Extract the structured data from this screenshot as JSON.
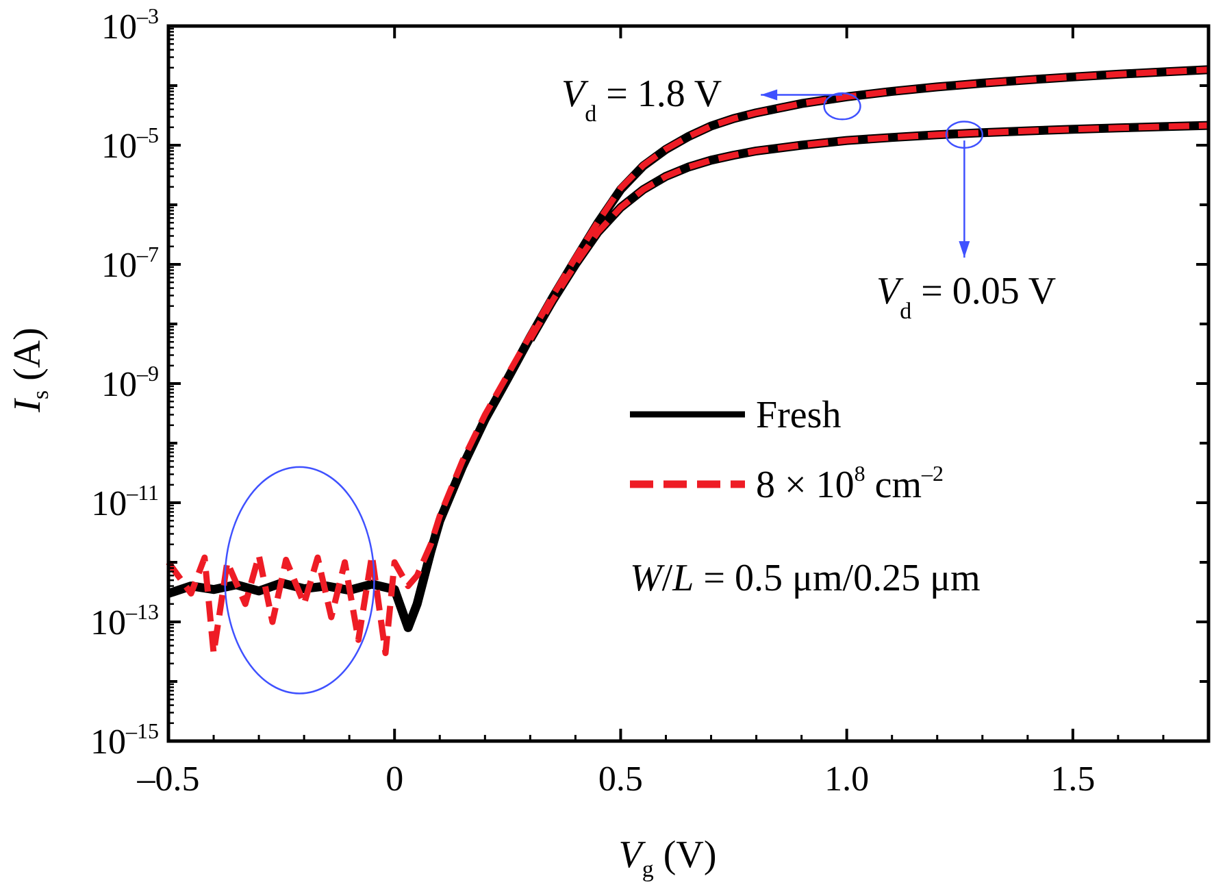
{
  "chart_data": {
    "type": "line",
    "x_axis": {
      "label_main": "V",
      "label_sub": "g",
      "label_unit": " (V)",
      "range": [
        -0.5,
        1.8
      ],
      "ticks": [
        -0.5,
        0,
        0.5,
        1.0,
        1.5
      ],
      "tick_labels": [
        "–0.5",
        "0",
        "0.5",
        "1.0",
        "1.5"
      ]
    },
    "y_axis": {
      "label_main": "I",
      "label_sub": "s",
      "label_unit": " (A)",
      "scale": "log",
      "range": [
        1e-15,
        0.001
      ],
      "ticks": [
        {
          "value": 0.001,
          "base": "10",
          "exp": "–3"
        },
        {
          "value": 1e-05,
          "base": "10",
          "exp": "–5"
        },
        {
          "value": 1e-07,
          "base": "10",
          "exp": "–7"
        },
        {
          "value": 1e-09,
          "base": "10",
          "exp": "–9"
        },
        {
          "value": 1e-11,
          "base": "10",
          "exp": "–11"
        },
        {
          "value": 1e-13,
          "base": "10",
          "exp": "–13"
        },
        {
          "value": 1e-15,
          "base": "10",
          "exp": "–15"
        }
      ]
    },
    "legend": {
      "placement": "center-right",
      "entries": [
        {
          "label": "Fresh",
          "color": "#000000",
          "style": "solid"
        },
        {
          "label_main": "8 × 10",
          "label_sup1": "8",
          "label_mid": " cm",
          "label_sup2": "–2",
          "color": "#ee1c25",
          "style": "dashed"
        }
      ]
    },
    "annotations": {
      "vd_high": {
        "main": "V",
        "sub": "d",
        "rest": " = 1.8 V"
      },
      "vd_low": {
        "main": "V",
        "sub": "d",
        "rest": " = 0.05 V"
      },
      "wl": {
        "w": "W",
        "slash": "/",
        "l": "L",
        "rest": " = 0.5 μm/0.25 μm"
      }
    },
    "series": [
      {
        "name": "Fresh",
        "condition": "Vd = 1.8 V",
        "color": "#000000",
        "style": "solid",
        "x": [
          -0.5,
          -0.45,
          -0.4,
          -0.35,
          -0.3,
          -0.25,
          -0.2,
          -0.15,
          -0.1,
          -0.05,
          0.0,
          0.03,
          0.05,
          0.08,
          0.1,
          0.15,
          0.2,
          0.25,
          0.3,
          0.35,
          0.4,
          0.45,
          0.5,
          0.55,
          0.6,
          0.65,
          0.7,
          0.75,
          0.8,
          0.9,
          1.0,
          1.1,
          1.2,
          1.3,
          1.4,
          1.5,
          1.6,
          1.7,
          1.8
        ],
        "y": [
          3e-13,
          4e-13,
          3.5e-13,
          4.2e-13,
          3.3e-13,
          4.5e-13,
          3.6e-13,
          4e-13,
          3.4e-13,
          4.3e-13,
          3.5e-13,
          8e-14,
          2e-13,
          1.5e-12,
          5e-12,
          4e-11,
          2.5e-10,
          1.2e-09,
          6e-09,
          2.8e-08,
          1.2e-07,
          5e-07,
          1.8e-06,
          4.5e-06,
          8.5e-06,
          1.4e-05,
          2.1e-05,
          2.8e-05,
          3.5e-05,
          5e-05,
          6.5e-05,
          8e-05,
          9.5e-05,
          0.00011,
          0.000125,
          0.00014,
          0.000155,
          0.00017,
          0.000185
        ]
      },
      {
        "name": "8 × 10^8 cm^-2",
        "condition": "Vd = 1.8 V",
        "color": "#ee1c25",
        "style": "dashed",
        "x": [
          -0.5,
          -0.45,
          -0.42,
          -0.4,
          -0.37,
          -0.33,
          -0.3,
          -0.27,
          -0.24,
          -0.2,
          -0.17,
          -0.14,
          -0.11,
          -0.08,
          -0.05,
          -0.02,
          0.0,
          0.03,
          0.05,
          0.08,
          0.1,
          0.15,
          0.2,
          0.25,
          0.3,
          0.35,
          0.4,
          0.45,
          0.5,
          0.55,
          0.6,
          0.65,
          0.7,
          0.75,
          0.8,
          0.9,
          1.0,
          1.1,
          1.2,
          1.3,
          1.4,
          1.5,
          1.6,
          1.7,
          1.8
        ],
        "y": [
          1e-12,
          3e-13,
          1.2e-12,
          3e-14,
          1e-12,
          2e-13,
          1.3e-12,
          1e-13,
          1.1e-12,
          2e-13,
          1.2e-12,
          1.2e-13,
          1e-12,
          5e-14,
          1.3e-12,
          3e-14,
          1e-12,
          4e-13,
          6e-13,
          2e-12,
          6e-12,
          5e-11,
          3e-10,
          1.4e-09,
          6.5e-09,
          3e-08,
          1.3e-07,
          5.2e-07,
          1.9e-06,
          4.6e-06,
          8.6e-06,
          1.4e-05,
          2.1e-05,
          2.8e-05,
          3.5e-05,
          5e-05,
          6.5e-05,
          8e-05,
          9.5e-05,
          0.00011,
          0.000125,
          0.00014,
          0.000155,
          0.00017,
          0.000185
        ]
      },
      {
        "name": "Fresh",
        "condition": "Vd = 0.05 V",
        "color": "#000000",
        "style": "solid",
        "x": [
          0.3,
          0.35,
          0.4,
          0.45,
          0.5,
          0.55,
          0.6,
          0.65,
          0.7,
          0.75,
          0.8,
          0.9,
          1.0,
          1.1,
          1.2,
          1.3,
          1.4,
          1.5,
          1.6,
          1.7,
          1.8
        ],
        "y": [
          5.5e-09,
          2.5e-08,
          1e-07,
          3.5e-07,
          9e-07,
          1.8e-06,
          3e-06,
          4.3e-06,
          5.6e-06,
          6.8e-06,
          8e-06,
          1e-05,
          1.2e-05,
          1.35e-05,
          1.5e-05,
          1.62e-05,
          1.74e-05,
          1.85e-05,
          1.95e-05,
          2.05e-05,
          2.15e-05
        ]
      },
      {
        "name": "8 × 10^8 cm^-2",
        "condition": "Vd = 0.05 V",
        "color": "#ee1c25",
        "style": "dashed",
        "x": [
          0.3,
          0.35,
          0.4,
          0.45,
          0.5,
          0.55,
          0.6,
          0.65,
          0.7,
          0.75,
          0.8,
          0.9,
          1.0,
          1.1,
          1.2,
          1.3,
          1.4,
          1.5,
          1.6,
          1.7,
          1.8
        ],
        "y": [
          5.5e-09,
          2.5e-08,
          1e-07,
          3.5e-07,
          9e-07,
          1.8e-06,
          3e-06,
          4.3e-06,
          5.6e-06,
          6.8e-06,
          8e-06,
          1e-05,
          1.2e-05,
          1.35e-05,
          1.5e-05,
          1.62e-05,
          1.74e-05,
          1.85e-05,
          1.95e-05,
          2.05e-05,
          2.15e-05
        ]
      }
    ],
    "markers": {
      "color": "#3f51ff",
      "noise_ellipse": {
        "cx": -0.21,
        "cy": 5e-13,
        "rx": 0.165,
        "ry_decades": 1.9
      },
      "vd_high_ellipse": {
        "cx": 0.99,
        "cy": 4.5e-05,
        "rx": 0.04,
        "ry_decades": 0.22
      },
      "vd_low_ellipse": {
        "cx": 1.26,
        "cy": 1.5e-05,
        "rx": 0.04,
        "ry_decades": 0.22
      },
      "vd_high_arrow": {
        "from": [
          0.99,
          7e-05
        ],
        "to": [
          0.81,
          7e-05
        ]
      },
      "vd_low_arrow": {
        "from": [
          1.26,
          1.2e-05
        ],
        "to": [
          1.26,
          1.3e-07
        ]
      }
    }
  }
}
